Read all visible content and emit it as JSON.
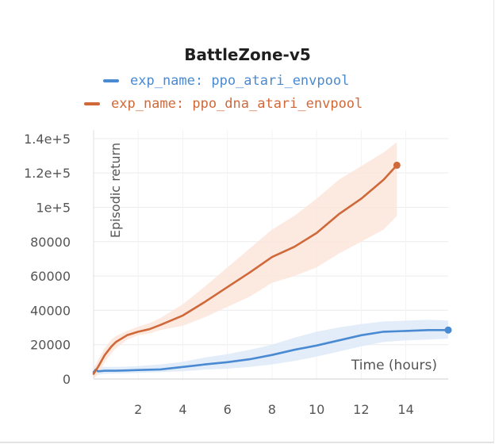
{
  "chart_data": {
    "type": "line",
    "title": "BattleZone-v5",
    "xlabel": "Time (hours)",
    "ylabel": "Episodic return",
    "xlim": [
      0,
      15.9
    ],
    "ylim": [
      0,
      145000
    ],
    "x_ticks": [
      2,
      4,
      6,
      8,
      10,
      12,
      14
    ],
    "x_tick_labels": [
      "2",
      "4",
      "6",
      "8",
      "10",
      "12",
      "14"
    ],
    "y_ticks": [
      0,
      20000,
      40000,
      60000,
      80000,
      100000,
      120000,
      140000
    ],
    "y_tick_labels": [
      "0",
      "20000",
      "40000",
      "60000",
      "80000",
      "1e+5",
      "1.2e+5",
      "1.4e+5"
    ],
    "grid": true,
    "legend_position": "top",
    "series": [
      {
        "name": "exp_name: ppo_atari_envpool",
        "color": "#4a8ad3",
        "band_color": "#ddeaf8",
        "x": [
          0,
          0.1,
          0.2,
          0.5,
          1,
          1.5,
          2,
          3,
          4,
          5,
          6,
          7,
          8,
          9,
          10,
          11,
          12,
          13,
          14,
          15,
          15.9
        ],
        "y": [
          4000,
          5500,
          4500,
          4800,
          4800,
          5000,
          5200,
          5600,
          7000,
          8500,
          9800,
          11500,
          14000,
          17000,
          19500,
          22500,
          25500,
          27500,
          28000,
          28500,
          28500
        ],
        "band_low": [
          0,
          2000,
          2500,
          3000,
          3200,
          3400,
          3600,
          4000,
          4500,
          5500,
          6000,
          7000,
          8500,
          10500,
          13000,
          16000,
          19000,
          21500,
          22500,
          23000,
          23500
        ],
        "band_high": [
          7000,
          8000,
          7000,
          7000,
          7000,
          7200,
          7500,
          8500,
          10000,
          12500,
          14500,
          17000,
          20000,
          24000,
          27500,
          30000,
          32000,
          33500,
          34000,
          34500,
          34000
        ]
      },
      {
        "name": "exp_name: ppo_dna_atari_envpool",
        "color": "#d0693a",
        "band_color": "#fbe5da",
        "x": [
          0,
          0.2,
          0.5,
          0.8,
          1,
          1.5,
          2,
          2.5,
          3,
          4,
          5,
          6,
          7,
          8,
          9,
          10,
          11,
          12,
          13,
          13.6
        ],
        "y": [
          3000,
          7000,
          14000,
          19000,
          21500,
          25500,
          27500,
          29000,
          31500,
          37000,
          45000,
          53500,
          62000,
          71000,
          77000,
          85000,
          96000,
          105000,
          116000,
          124500
        ],
        "band_low": [
          0,
          3000,
          10000,
          15000,
          18000,
          23000,
          25500,
          26500,
          28500,
          31000,
          36000,
          42000,
          48000,
          56000,
          60000,
          65000,
          73000,
          80000,
          87000,
          95000
        ],
        "band_high": [
          6000,
          11000,
          18000,
          23000,
          25000,
          28000,
          30500,
          32500,
          35500,
          43500,
          54000,
          65000,
          76000,
          87000,
          95000,
          105000,
          116000,
          124000,
          132000,
          138000
        ]
      }
    ]
  }
}
